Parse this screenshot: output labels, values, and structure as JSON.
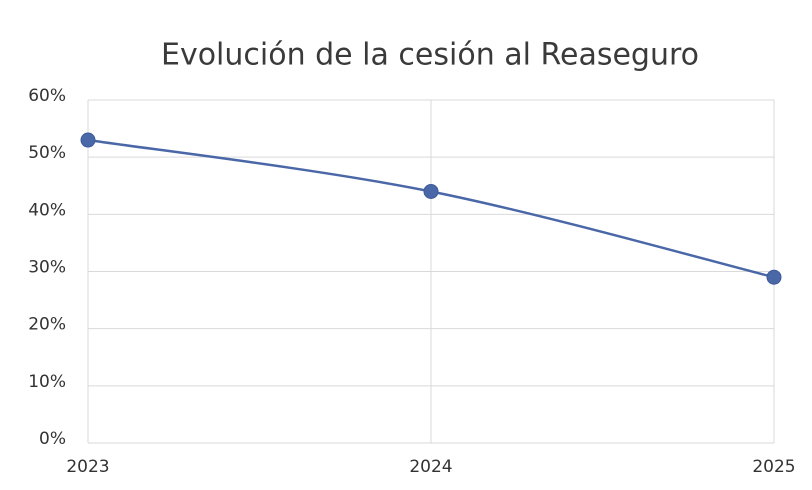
{
  "chart_data": {
    "type": "line",
    "title": "Evolución de la cesión al Reaseguro",
    "categories": [
      "2023",
      "2024",
      "2025"
    ],
    "values": [
      53,
      44,
      29
    ],
    "color": "#4a67a8",
    "smooth": true,
    "grid": true,
    "ylim": [
      0,
      60
    ],
    "yticks": [
      {
        "value": 0,
        "label": "0%"
      },
      {
        "value": 10,
        "label": "10%"
      },
      {
        "value": 20,
        "label": "20%"
      },
      {
        "value": 30,
        "label": "30%"
      },
      {
        "value": 40,
        "label": "40%"
      },
      {
        "value": 50,
        "label": "50%"
      },
      {
        "value": 60,
        "label": "60%"
      }
    ]
  }
}
